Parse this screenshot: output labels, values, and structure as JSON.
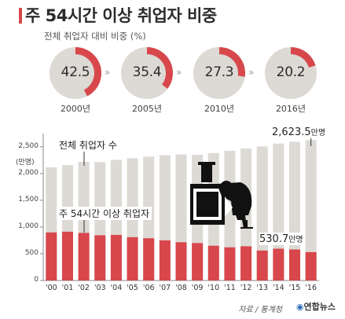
{
  "title": "주 54시간 이상 취업자 비중",
  "subtitle": "전체 취업자 대비 비중 (%)",
  "share": [
    {
      "year": "2000년",
      "value": "42.5",
      "pct": 42.5
    },
    {
      "year": "2005년",
      "value": "35.4",
      "pct": 35.4
    },
    {
      "year": "2010년",
      "value": "27.3",
      "pct": 27.3
    },
    {
      "year": "2016년",
      "value": "20.2",
      "pct": 20.2
    }
  ],
  "chevron": "»",
  "colors": {
    "red": "#d7474c",
    "grey": "#ddd9d4",
    "dark": "#2b2b2b"
  },
  "chart_data": {
    "type": "bar",
    "categories": [
      "'00",
      "'01",
      "'02",
      "'03",
      "'04",
      "'05",
      "'06",
      "'07",
      "'08",
      "'09",
      "'10",
      "'11",
      "'12",
      "'13",
      "'14",
      "'15",
      "'16"
    ],
    "series": [
      {
        "name": "전체 취업자 수",
        "values": [
          2116,
          2157,
          2217,
          2214,
          2256,
          2286,
          2315,
          2343,
          2358,
          2351,
          2383,
          2425,
          2468,
          2507,
          2560,
          2594,
          2623.5
        ]
      },
      {
        "name": "주 54시간 이상 취업자",
        "values": [
          899,
          912,
          890,
          845,
          852,
          810,
          790,
          750,
          715,
          700,
          650,
          620,
          640,
          560,
          595,
          580,
          530.7
        ]
      }
    ],
    "yticks": [
      "0",
      "500",
      "1,000",
      "1,500",
      "2,000",
      "2,500"
    ],
    "ylim": [
      0,
      2600
    ],
    "yunit": "(만명)",
    "label_total": "전체 취업자 수",
    "label_long": "주 54시간 이상 취업자",
    "callout_total": {
      "value": "2,623.5",
      "unit": "만명"
    },
    "callout_long": {
      "value": "530.7",
      "unit": "만명"
    }
  },
  "source": "자료 / 통계청",
  "logo": "연합뉴스"
}
